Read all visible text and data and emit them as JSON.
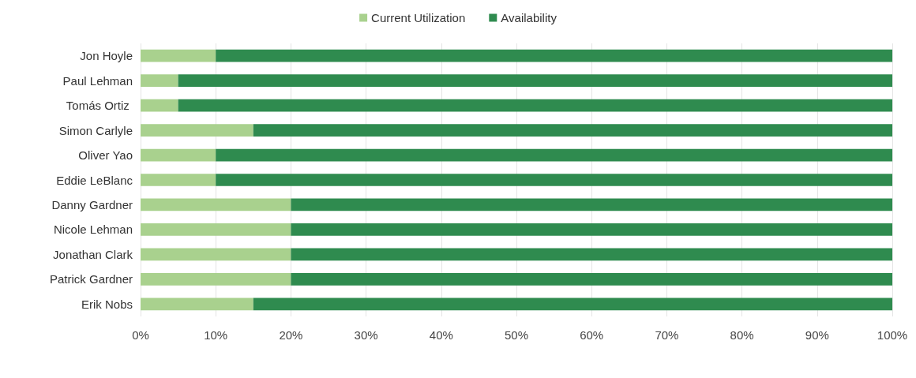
{
  "chart_data": {
    "type": "bar",
    "orientation": "horizontal",
    "stacked": true,
    "categories": [
      "Jon Hoyle",
      "Paul Lehman",
      "Tomás Ortiz ",
      "Simon Carlyle",
      "Oliver Yao",
      "Eddie LeBlanc",
      "Danny Gardner",
      "Nicole Lehman",
      "Jonathan Clark",
      "Patrick Gardner",
      "Erik Nobs"
    ],
    "series": [
      {
        "name": "Current Utilization",
        "color": "#a9d18e",
        "values": [
          10,
          5,
          5,
          15,
          10,
          10,
          20,
          20,
          20,
          20,
          15
        ]
      },
      {
        "name": "Availability",
        "color": "#2f8b4f",
        "values": [
          90,
          95,
          95,
          85,
          90,
          90,
          80,
          80,
          80,
          80,
          85
        ]
      }
    ],
    "xlim": [
      0,
      100
    ],
    "xticks": [
      {
        "value": 0,
        "label": "0%"
      },
      {
        "value": 10,
        "label": "10%"
      },
      {
        "value": 20,
        "label": "20%"
      },
      {
        "value": 30,
        "label": "30%"
      },
      {
        "value": 40,
        "label": "40%"
      },
      {
        "value": 50,
        "label": "50%"
      },
      {
        "value": 60,
        "label": "60%"
      },
      {
        "value": 70,
        "label": "70%"
      },
      {
        "value": 80,
        "label": "80%"
      },
      {
        "value": 90,
        "label": "90%"
      },
      {
        "value": 100,
        "label": "100%"
      }
    ],
    "grid": "x",
    "legend": "top"
  }
}
